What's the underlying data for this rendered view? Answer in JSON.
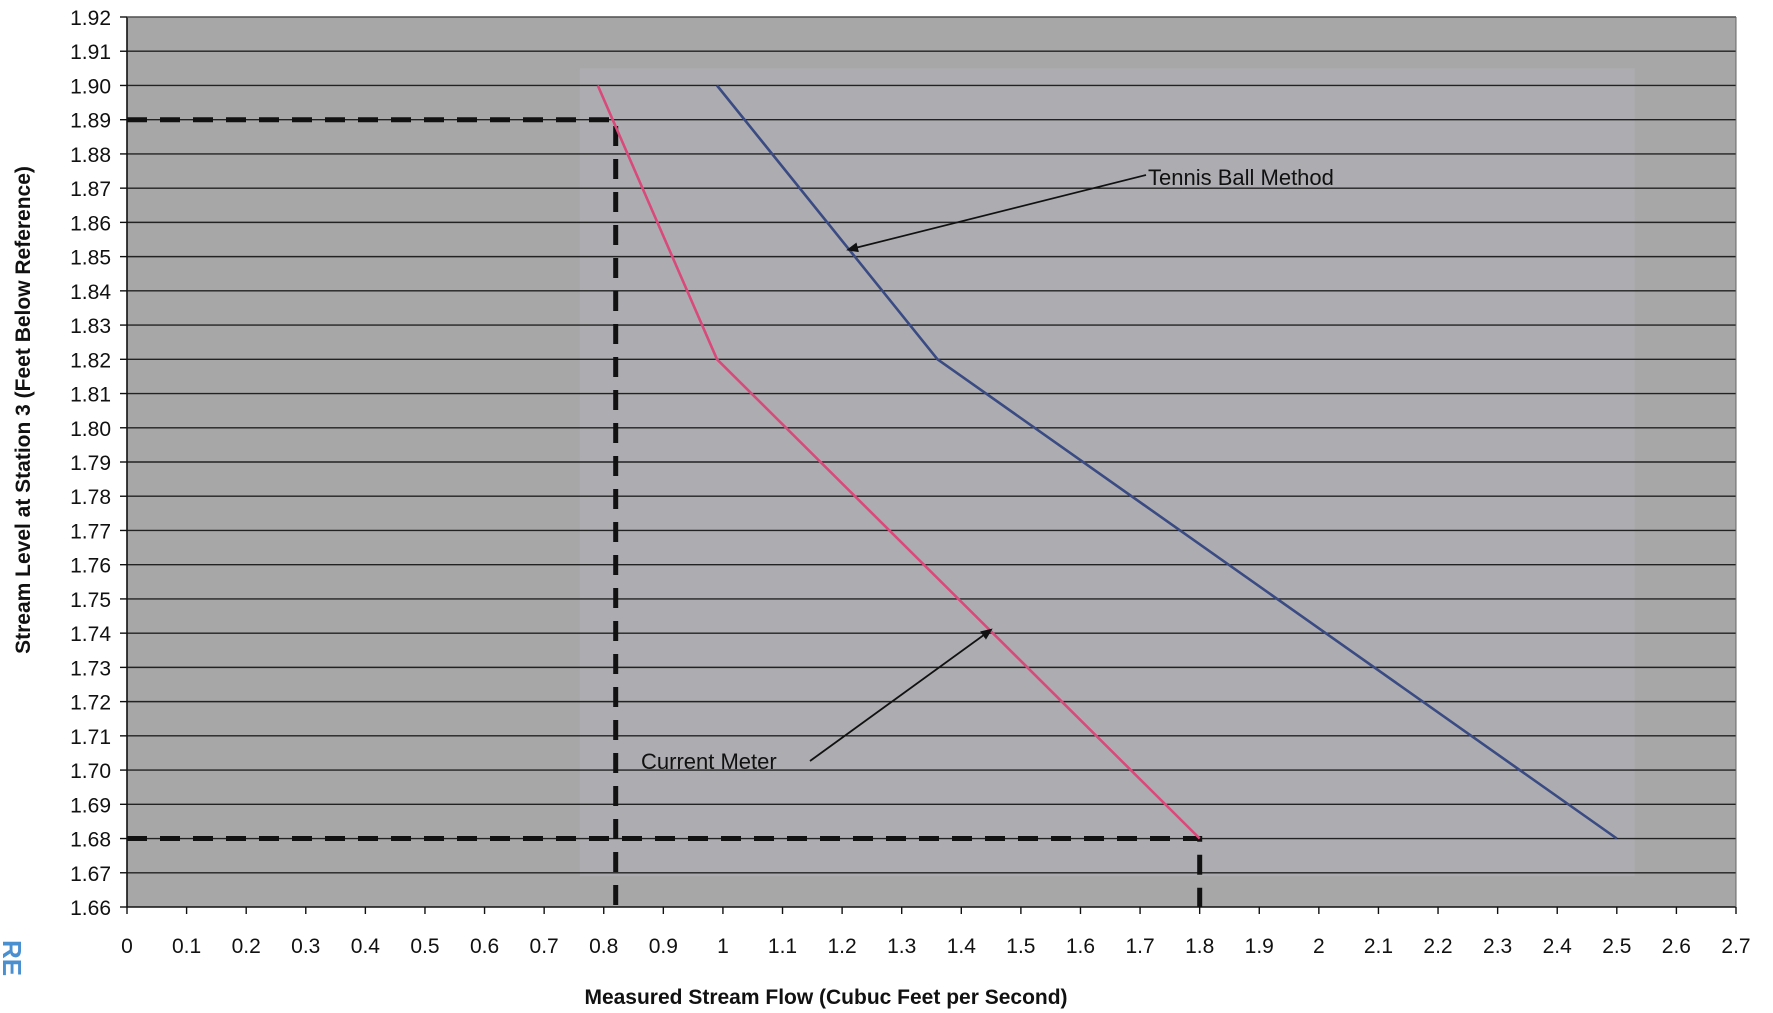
{
  "chart_data": {
    "type": "line",
    "title": "",
    "xlabel": "Measured Stream Flow (Cubuc Feet per Second)",
    "ylabel": "Stream Level at Station 3 (Feet Below Reference)",
    "xlim": [
      0,
      2.7
    ],
    "ylim": [
      1.66,
      1.92
    ],
    "x_ticks": [
      0,
      0.1,
      0.2,
      0.3,
      0.4,
      0.5,
      0.6,
      0.7,
      0.8,
      0.9,
      1,
      1.1,
      1.2,
      1.3,
      1.4,
      1.5,
      1.6,
      1.7,
      1.8,
      1.9,
      2,
      2.1,
      2.2,
      2.3,
      2.4,
      2.5,
      2.6,
      2.7
    ],
    "x_tick_labels": [
      "0",
      "0.1",
      "0.2",
      "0.3",
      "0.4",
      "0.5",
      "0.6",
      "0.7",
      "0.8",
      "0.9",
      "1",
      "1.1",
      "1.2",
      "1.3",
      "1.4",
      "1.5",
      "1.6",
      "1.7",
      "1.8",
      "1.9",
      "2",
      "2.1",
      "2.2",
      "2.3",
      "2.4",
      "2.5",
      "2.6",
      "2.7"
    ],
    "y_ticks": [
      1.66,
      1.67,
      1.68,
      1.69,
      1.7,
      1.71,
      1.72,
      1.73,
      1.74,
      1.75,
      1.76,
      1.77,
      1.78,
      1.79,
      1.8,
      1.81,
      1.82,
      1.83,
      1.84,
      1.85,
      1.86,
      1.87,
      1.88,
      1.89,
      1.9,
      1.91,
      1.92
    ],
    "y_tick_labels": [
      "1.66",
      "1.67",
      "1.68",
      "1.69",
      "1.70",
      "1.71",
      "1.72",
      "1.73",
      "1.74",
      "1.75",
      "1.76",
      "1.77",
      "1.78",
      "1.79",
      "1.80",
      "1.81",
      "1.82",
      "1.83",
      "1.84",
      "1.85",
      "1.86",
      "1.87",
      "1.88",
      "1.89",
      "1.90",
      "1.91",
      "1.92"
    ],
    "grid": "horizontal",
    "series": [
      {
        "name": "Tennis Ball Method",
        "color": "#3a4a82",
        "points": [
          [
            0.99,
            1.9
          ],
          [
            1.36,
            1.82
          ],
          [
            2.5,
            1.68
          ]
        ]
      },
      {
        "name": "Current Meter",
        "color": "#d9497a",
        "points": [
          [
            0.79,
            1.9
          ],
          [
            0.99,
            1.82
          ],
          [
            1.8,
            1.68
          ]
        ]
      }
    ],
    "annotations": [
      {
        "text": "Tennis Ball Method",
        "points_to": [
          1.21,
          1.852
        ]
      },
      {
        "text": "Current Meter",
        "points_to": [
          1.45,
          1.741
        ]
      }
    ],
    "reference_lines": {
      "color": "#111111",
      "paths": [
        [
          [
            0,
            1.89
          ],
          [
            0.82,
            1.89
          ],
          [
            0.82,
            1.66
          ]
        ],
        [
          [
            0,
            1.68
          ],
          [
            1.8,
            1.68
          ],
          [
            1.8,
            1.66
          ]
        ]
      ]
    },
    "colors": {
      "plot_background": "#a7a7a7",
      "inner_background": "#adadb1",
      "gridline": "#222222"
    }
  },
  "corner_glyph": "RE"
}
